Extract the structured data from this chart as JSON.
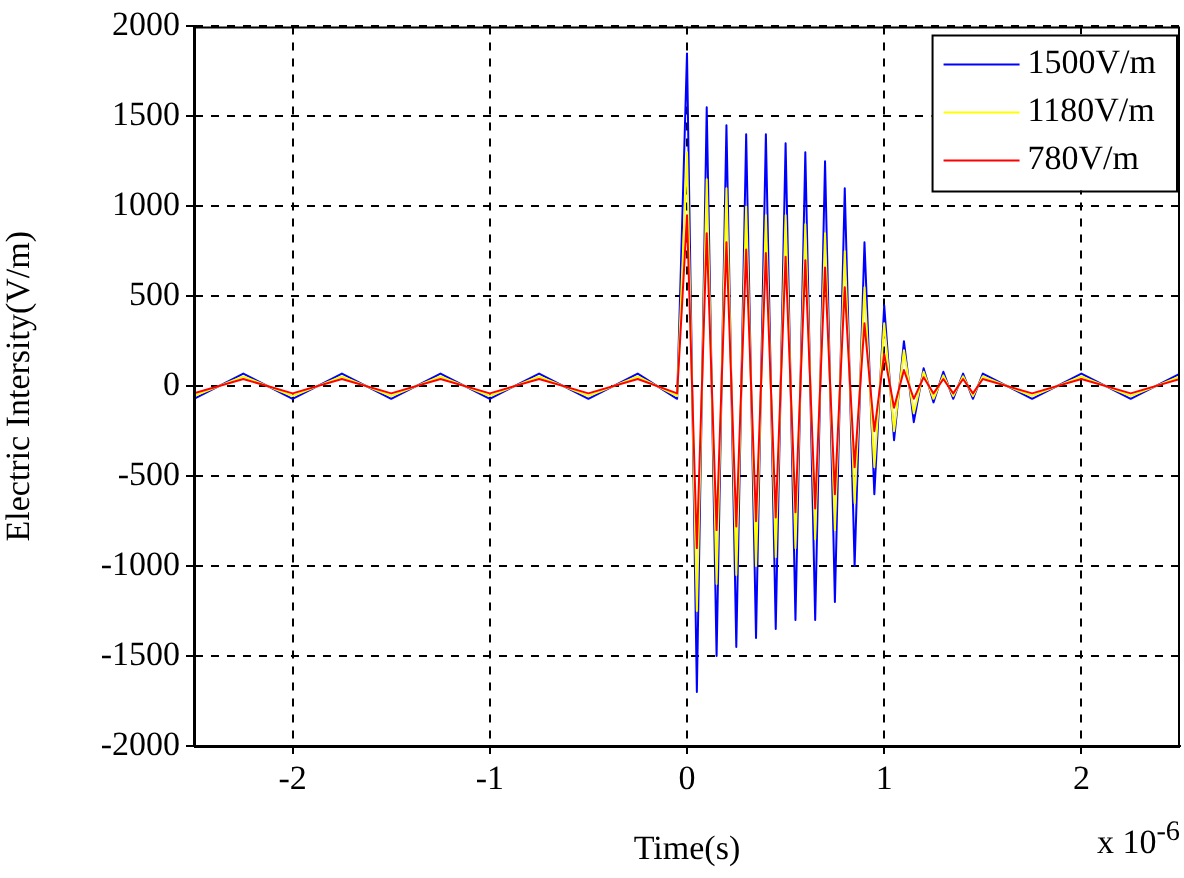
{
  "chart_data": {
    "type": "line",
    "xlabel": "Time(s)",
    "ylabel": "Electric Intersity(V/m)",
    "x": [
      -2.5,
      -2.25,
      -2,
      -1.75,
      -1.5,
      -1.25,
      -1,
      -0.75,
      -0.5,
      -0.25,
      -0.05,
      0,
      0.05,
      0.1,
      0.15,
      0.2,
      0.25,
      0.3,
      0.35,
      0.4,
      0.45,
      0.5,
      0.55,
      0.6,
      0.65,
      0.7,
      0.75,
      0.8,
      0.85,
      0.9,
      0.95,
      1,
      1.05,
      1.1,
      1.15,
      1.2,
      1.25,
      1.3,
      1.35,
      1.4,
      1.45,
      1.5,
      1.75,
      2,
      2.25,
      2.5
    ],
    "series": [
      {
        "name": "1500V/m",
        "color": "#0000ff",
        "values": [
          -70,
          70,
          -70,
          70,
          -70,
          70,
          -70,
          70,
          -70,
          70,
          -70,
          1850,
          -1700,
          1550,
          -1500,
          1450,
          -1450,
          1400,
          -1400,
          1400,
          -1350,
          1350,
          -1300,
          1300,
          -1300,
          1250,
          -1200,
          1100,
          -1000,
          800,
          -600,
          450,
          -300,
          250,
          -200,
          100,
          -90,
          80,
          -70,
          70,
          -70,
          70,
          -70,
          70,
          -70,
          70
        ]
      },
      {
        "name": "1180V/m",
        "color": "#ffff00",
        "values": [
          -55,
          55,
          -55,
          55,
          -55,
          55,
          -55,
          55,
          -55,
          55,
          -55,
          1300,
          -1250,
          1150,
          -1100,
          1100,
          -1050,
          1000,
          -1000,
          950,
          -950,
          950,
          -900,
          900,
          -850,
          850,
          -800,
          750,
          -650,
          550,
          -450,
          350,
          -250,
          200,
          -150,
          80,
          -70,
          60,
          -55,
          55,
          -55,
          55,
          -55,
          55,
          -55,
          55
        ]
      },
      {
        "name": "780V/m",
        "color": "#ff0000",
        "values": [
          -40,
          40,
          -40,
          40,
          -40,
          40,
          -40,
          40,
          -40,
          40,
          -40,
          950,
          -900,
          850,
          -800,
          800,
          -780,
          760,
          -750,
          740,
          -730,
          720,
          -700,
          700,
          -680,
          660,
          -600,
          550,
          -450,
          350,
          -250,
          180,
          -120,
          90,
          -70,
          50,
          -40,
          40,
          -40,
          40,
          -40,
          40,
          -40,
          40,
          -40,
          40
        ]
      }
    ],
    "xlim": [
      -2.5,
      2.5
    ],
    "xticks": [
      -2,
      -1,
      0,
      1,
      2
    ],
    "ylim": [
      -2000,
      2000
    ],
    "yticks": [
      -2000,
      -1500,
      -1000,
      -500,
      0,
      500,
      1000,
      1500,
      2000
    ],
    "grid": true,
    "legend": "top right",
    "marker": "none",
    "line_style": "solid",
    "annotations": [
      "x 10$^{-6}$"
    ]
  }
}
